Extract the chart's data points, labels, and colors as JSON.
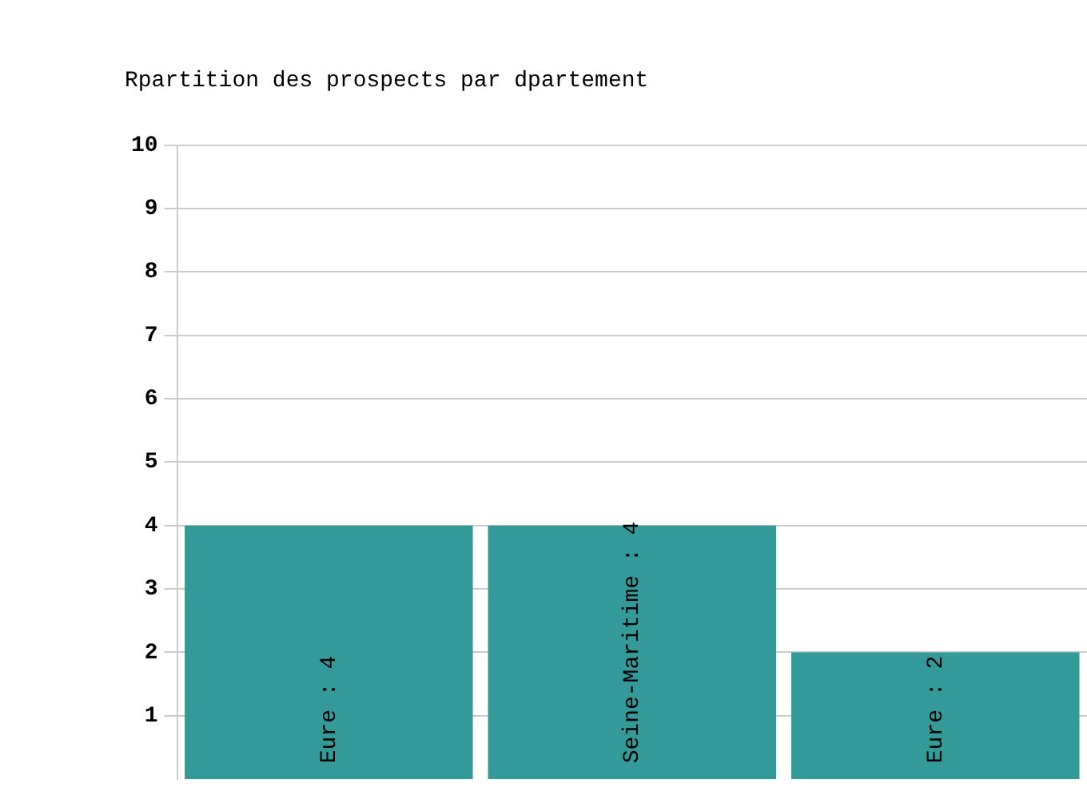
{
  "chart_data": {
    "type": "bar",
    "title": "Rpartition des prospects par dpartement",
    "categories": [
      null,
      null,
      null
    ],
    "values": [
      4,
      4,
      2
    ],
    "value_labels": [
      "Eure : 4",
      "Seine-Maritime : 4",
      "Eure : 2"
    ],
    "color": "#339999",
    "ylim": [
      0,
      10
    ],
    "yticks": [
      1,
      2,
      3,
      4,
      5,
      6,
      7,
      8,
      9,
      10
    ],
    "grid": "y",
    "tick_labels": "y"
  }
}
